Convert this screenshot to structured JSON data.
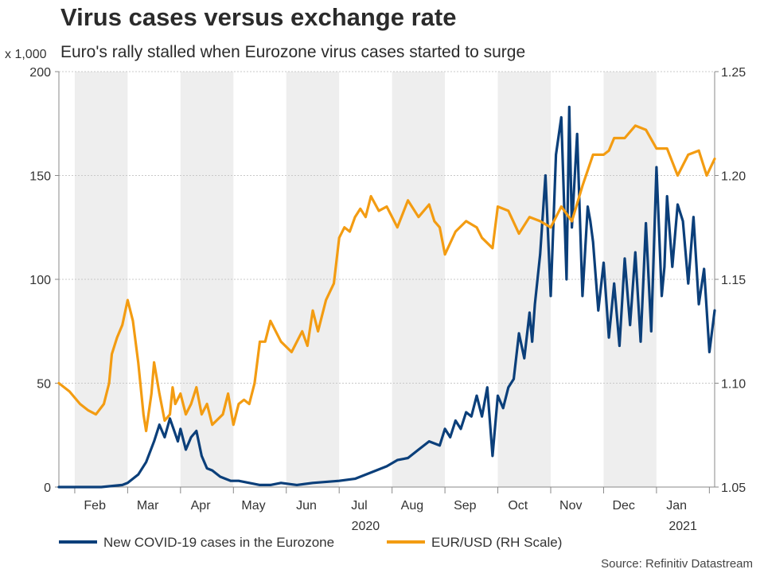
{
  "title": "Virus cases versus exchange rate",
  "subtitle": "Euro's rally stalled when Eurozone virus cases started to surge",
  "source": "Source: Refinitiv Datastream",
  "legend": [
    {
      "label": "New COVID-19 cases in the Eurozone",
      "color": "#0b3f7a"
    },
    {
      "label": "EUR/USD (RH Scale)",
      "color": "#f39c12"
    }
  ],
  "chart_data": {
    "type": "line",
    "title": "Virus cases versus exchange rate",
    "subtitle": "Euro's rally stalled when Eurozone virus cases started to surge",
    "x_unit": "month index (0 = Feb 1 2020)",
    "x_range": [
      -0.3,
      12.1
    ],
    "month_labels": [
      "Feb",
      "Mar",
      "Apr",
      "May",
      "Jun",
      "Jul",
      "Aug",
      "Sep",
      "Oct",
      "Nov",
      "Dec",
      "Jan"
    ],
    "year_labels": [
      {
        "label": "2020",
        "at": 5.5
      },
      {
        "label": "2021",
        "at": 11.5
      }
    ],
    "shaded_months": [
      0,
      2,
      4,
      6,
      8,
      10
    ],
    "y_left": {
      "label": "x 1,000",
      "range": [
        0,
        200
      ],
      "ticks": [
        0,
        50,
        100,
        150,
        200
      ]
    },
    "y_right": {
      "label": "EUR/USD",
      "range": [
        1.05,
        1.25
      ],
      "ticks": [
        "1.05",
        "1.10",
        "1.15",
        "1.20",
        "1.25"
      ]
    },
    "series": [
      {
        "name": "New COVID-19 cases in the Eurozone",
        "axis": "left",
        "color": "#0b3f7a",
        "x": [
          -0.3,
          0.0,
          0.5,
          0.9,
          1.0,
          1.2,
          1.35,
          1.5,
          1.6,
          1.7,
          1.8,
          1.95,
          2.0,
          2.1,
          2.2,
          2.3,
          2.4,
          2.5,
          2.6,
          2.75,
          2.85,
          2.95,
          3.1,
          3.3,
          3.5,
          3.7,
          3.9,
          4.2,
          4.5,
          5.0,
          5.3,
          5.6,
          5.9,
          6.1,
          6.3,
          6.5,
          6.7,
          6.9,
          7.0,
          7.1,
          7.2,
          7.3,
          7.4,
          7.5,
          7.6,
          7.7,
          7.8,
          7.9,
          8.0,
          8.1,
          8.2,
          8.3,
          8.4,
          8.5,
          8.6,
          8.65,
          8.7,
          8.8,
          8.9,
          9.0,
          9.1,
          9.2,
          9.3,
          9.35,
          9.4,
          9.5,
          9.6,
          9.7,
          9.75,
          9.8,
          9.9,
          10.0,
          10.1,
          10.2,
          10.3,
          10.4,
          10.5,
          10.6,
          10.7,
          10.8,
          10.9,
          11.0,
          11.1,
          11.15,
          11.2,
          11.3,
          11.4,
          11.5,
          11.6,
          11.7,
          11.8,
          11.9,
          12.0,
          12.1
        ],
        "values": [
          0,
          0,
          0,
          1,
          2,
          6,
          12,
          22,
          30,
          24,
          33,
          22,
          28,
          18,
          24,
          27,
          15,
          9,
          8,
          5,
          4,
          3,
          3,
          2,
          1,
          1,
          2,
          1,
          2,
          3,
          4,
          7,
          10,
          13,
          14,
          18,
          22,
          20,
          28,
          24,
          32,
          28,
          36,
          34,
          44,
          34,
          48,
          15,
          44,
          38,
          48,
          52,
          74,
          62,
          84,
          70,
          88,
          112,
          150,
          92,
          160,
          178,
          100,
          183,
          125,
          170,
          92,
          135,
          128,
          118,
          85,
          108,
          72,
          98,
          68,
          110,
          78,
          113,
          70,
          127,
          75,
          154,
          92,
          106,
          140,
          106,
          136,
          128,
          98,
          130,
          88,
          105,
          65,
          85
        ]
      },
      {
        "name": "EUR/USD (RH Scale)",
        "axis": "right",
        "color": "#f39c12",
        "x": [
          -0.3,
          -0.1,
          0.1,
          0.25,
          0.4,
          0.55,
          0.65,
          0.7,
          0.75,
          0.8,
          0.9,
          1.0,
          1.1,
          1.2,
          1.3,
          1.35,
          1.45,
          1.5,
          1.6,
          1.7,
          1.8,
          1.85,
          1.9,
          2.0,
          2.1,
          2.2,
          2.3,
          2.4,
          2.5,
          2.6,
          2.8,
          2.9,
          3.0,
          3.1,
          3.2,
          3.3,
          3.4,
          3.5,
          3.6,
          3.7,
          3.9,
          4.1,
          4.3,
          4.4,
          4.5,
          4.6,
          4.75,
          4.9,
          5.0,
          5.1,
          5.2,
          5.3,
          5.4,
          5.5,
          5.6,
          5.75,
          5.9,
          6.1,
          6.3,
          6.5,
          6.7,
          6.8,
          6.9,
          7.0,
          7.2,
          7.4,
          7.6,
          7.7,
          7.9,
          8.0,
          8.2,
          8.4,
          8.6,
          8.8,
          9.0,
          9.2,
          9.4,
          9.6,
          9.8,
          10.0,
          10.1,
          10.2,
          10.4,
          10.6,
          10.8,
          11.0,
          11.2,
          11.4,
          11.6,
          11.8,
          11.95,
          12.1
        ],
        "values": [
          1.1,
          1.096,
          1.09,
          1.087,
          1.085,
          1.09,
          1.1,
          1.114,
          1.118,
          1.122,
          1.128,
          1.14,
          1.13,
          1.11,
          1.085,
          1.077,
          1.095,
          1.11,
          1.095,
          1.082,
          1.085,
          1.098,
          1.09,
          1.095,
          1.085,
          1.09,
          1.098,
          1.085,
          1.09,
          1.08,
          1.085,
          1.095,
          1.08,
          1.09,
          1.092,
          1.09,
          1.1,
          1.12,
          1.12,
          1.13,
          1.12,
          1.115,
          1.125,
          1.118,
          1.135,
          1.125,
          1.14,
          1.148,
          1.17,
          1.175,
          1.173,
          1.18,
          1.184,
          1.18,
          1.19,
          1.183,
          1.185,
          1.175,
          1.188,
          1.18,
          1.186,
          1.178,
          1.175,
          1.162,
          1.173,
          1.178,
          1.175,
          1.17,
          1.165,
          1.185,
          1.183,
          1.172,
          1.18,
          1.178,
          1.175,
          1.185,
          1.178,
          1.195,
          1.21,
          1.21,
          1.212,
          1.218,
          1.218,
          1.224,
          1.222,
          1.213,
          1.213,
          1.2,
          1.21,
          1.212,
          1.2,
          1.208
        ]
      }
    ]
  }
}
